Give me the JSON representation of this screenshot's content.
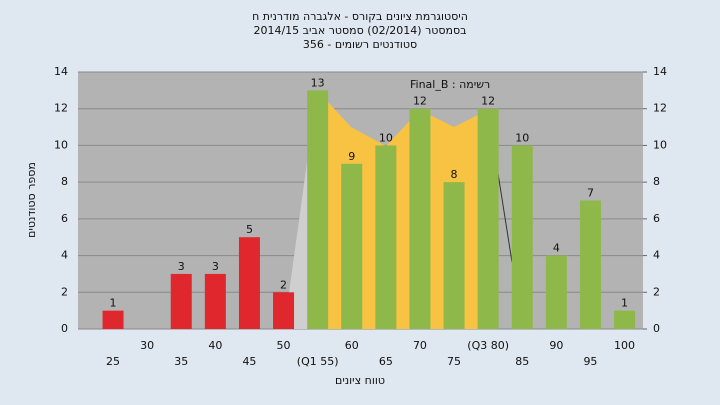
{
  "chart_data": {
    "type": "bar",
    "title": [
      "היסטוגרמת ציונים בקורס - אלגברה מודרנית ח",
      "בסמסטר  (02/2014)  סמסטר אביב 2014/15",
      "סטודנטים רשומים - 356"
    ],
    "annotation": "רשימה : Final_B",
    "x_label": "טווח ציונים",
    "y_label": "מספר סטודנטים",
    "categories": [
      "25",
      "30",
      "35",
      "40",
      "45",
      "50",
      "(Q1 55)",
      "60",
      "65",
      "70",
      "75",
      "(Q3 80)",
      "85",
      "90",
      "95",
      "100"
    ],
    "values": [
      1,
      null,
      3,
      3,
      5,
      2,
      13,
      9,
      10,
      12,
      8,
      12,
      10,
      4,
      7,
      1
    ],
    "colors": [
      "#e0272d",
      "#e0272d",
      "#e0272d",
      "#e0272d",
      "#e0272d",
      "#e0272d",
      "#8fb84a",
      "#8fb84a",
      "#8fb84a",
      "#8fb84a",
      "#8fb84a",
      "#8fb84a",
      "#8fb84a",
      "#8fb84a",
      "#8fb84a",
      "#8fb84a"
    ],
    "ylim": [
      0,
      14
    ],
    "yticks": [
      0,
      2,
      4,
      6,
      8,
      10,
      12,
      14
    ],
    "y2lim": [
      0,
      14
    ],
    "y2ticks": [
      0,
      2,
      4,
      6,
      8,
      10,
      12,
      14
    ],
    "grid": true
  }
}
